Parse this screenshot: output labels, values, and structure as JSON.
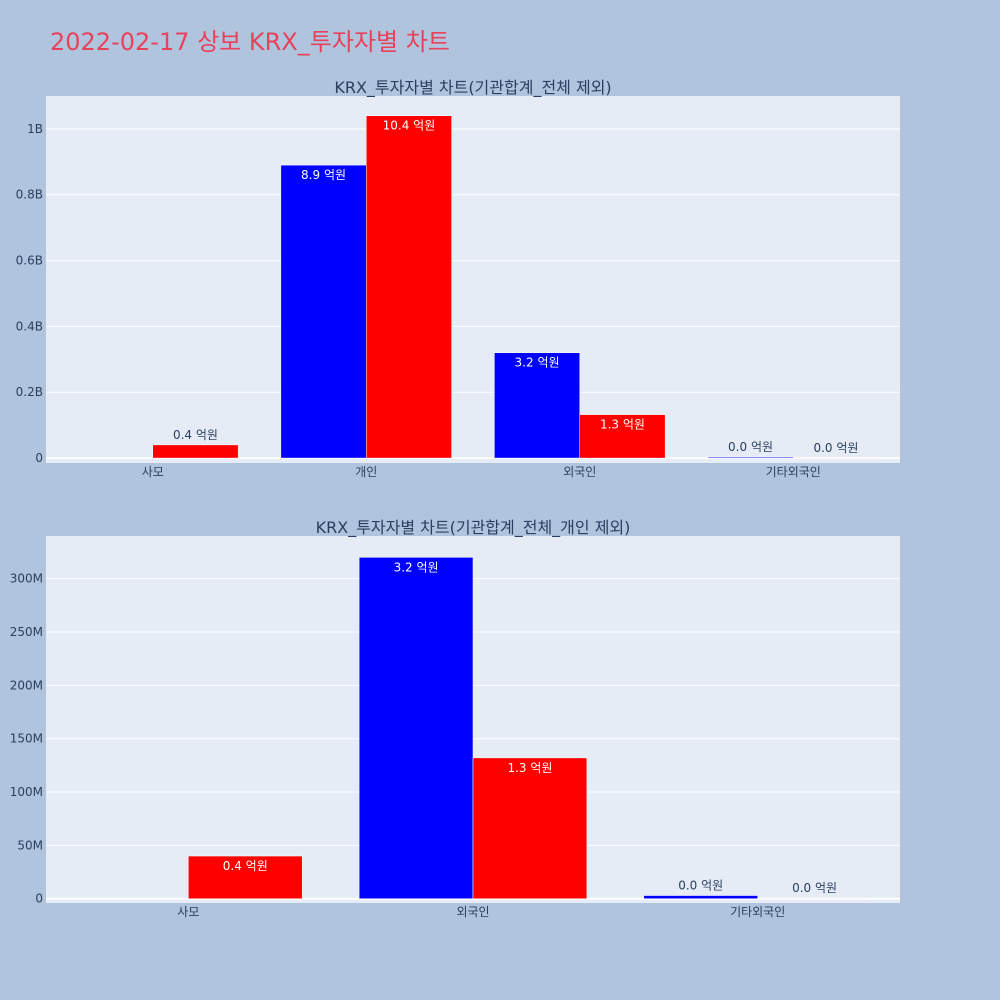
{
  "page": {
    "title": "2022-02-17 상보 KRX_투자자별 차트"
  },
  "colors": {
    "background": "#b0c4de",
    "plot_bg": "#e5ecf6",
    "grid": "#ffffff",
    "series_a": "#0000ff",
    "series_b": "#ff0000",
    "title": "#e8425a"
  },
  "chart_data": [
    {
      "type": "bar",
      "title": "KRX_투자자별 차트(기관합계_전체 제외)",
      "categories": [
        "사모",
        "개인",
        "외국인",
        "기타외국인"
      ],
      "series": [
        {
          "color": "#0000ff",
          "values": [
            0,
            890000000,
            320000000,
            3000000
          ],
          "labels": [
            "",
            "8.9 억원",
            "3.2 억원",
            "0.0 억원"
          ]
        },
        {
          "color": "#ff0000",
          "values": [
            40000000,
            1040000000,
            132000000,
            500000
          ],
          "labels": [
            "0.4 억원",
            "10.4 억원",
            "1.3 억원",
            "0.0 억원"
          ]
        }
      ],
      "ylim": [
        -15000000,
        1100000000
      ],
      "yticks": [
        0,
        200000000,
        400000000,
        600000000,
        800000000,
        1000000000
      ],
      "ytick_labels": [
        "0",
        "0.2B",
        "0.4B",
        "0.6B",
        "0.8B",
        "1B"
      ],
      "grid": true
    },
    {
      "type": "bar",
      "title": "KRX_투자자별 차트(기관합계_전체_개인 제외)",
      "categories": [
        "사모",
        "외국인",
        "기타외국인"
      ],
      "series": [
        {
          "color": "#0000ff",
          "values": [
            0,
            320000000,
            3000000
          ],
          "labels": [
            "",
            "3.2 억원",
            "0.0 억원"
          ]
        },
        {
          "color": "#ff0000",
          "values": [
            40000000,
            132000000,
            500000
          ],
          "labels": [
            "0.4 억원",
            "1.3 억원",
            "0.0 억원"
          ]
        }
      ],
      "ylim": [
        -4000000,
        340000000
      ],
      "yticks": [
        0,
        50000000,
        100000000,
        150000000,
        200000000,
        250000000,
        300000000
      ],
      "ytick_labels": [
        "0",
        "50M",
        "100M",
        "150M",
        "200M",
        "250M",
        "300M"
      ],
      "grid": true
    }
  ]
}
